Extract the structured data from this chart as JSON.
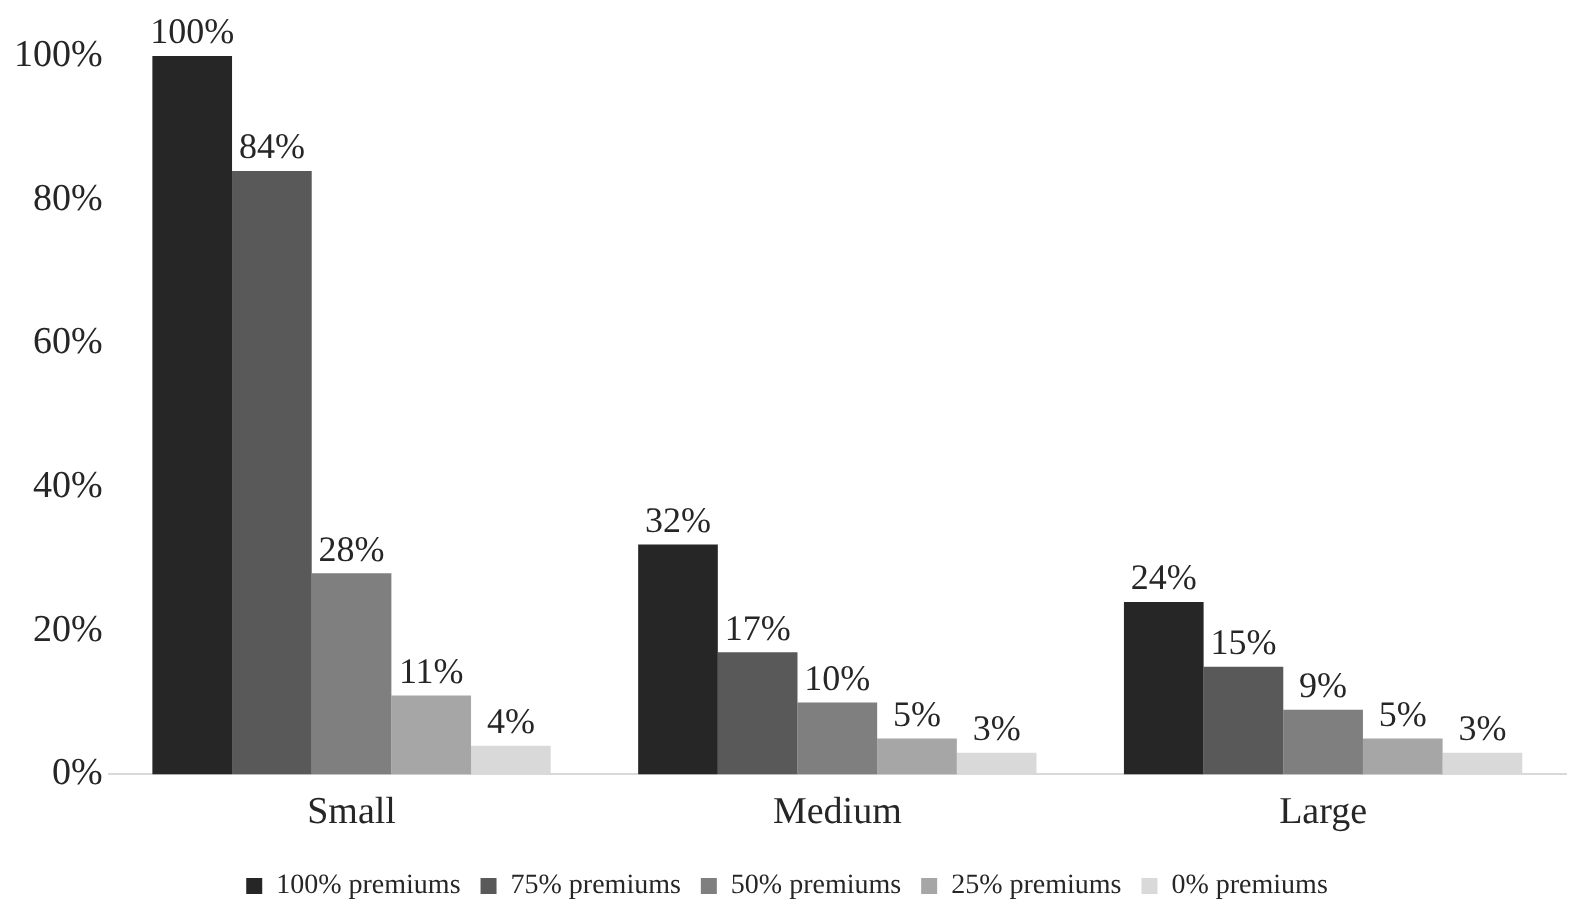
{
  "chart_data": {
    "type": "bar",
    "categories": [
      "Small",
      "Medium",
      "Large"
    ],
    "series": [
      {
        "name": "100% premiums",
        "color": "#262626",
        "values": [
          100,
          32,
          24
        ],
        "value_labels": [
          "100%",
          "32%",
          "24%"
        ]
      },
      {
        "name": "75% premiums",
        "color": "#595959",
        "values": [
          84,
          17,
          15
        ],
        "value_labels": [
          "84%",
          "17%",
          "15%"
        ]
      },
      {
        "name": "50% premiums",
        "color": "#7f7f7f",
        "values": [
          28,
          10,
          9
        ],
        "value_labels": [
          "28%",
          "10%",
          "9%"
        ]
      },
      {
        "name": "25% premiums",
        "color": "#a6a6a6",
        "values": [
          11,
          5,
          5
        ],
        "value_labels": [
          "11%",
          "5%",
          "5%"
        ]
      },
      {
        "name": "0% premiums",
        "color": "#d9d9d9",
        "values": [
          4,
          3,
          3
        ],
        "value_labels": [
          "4%",
          "3%",
          "3%"
        ]
      }
    ],
    "ylim": [
      0,
      100
    ],
    "yticks": [
      {
        "value": 0,
        "label": "0%"
      },
      {
        "value": 20,
        "label": "20%"
      },
      {
        "value": 40,
        "label": "40%"
      },
      {
        "value": 60,
        "label": "60%"
      },
      {
        "value": 80,
        "label": "80%"
      },
      {
        "value": 100,
        "label": "100%"
      }
    ],
    "grid": false,
    "legend": "bottom"
  }
}
